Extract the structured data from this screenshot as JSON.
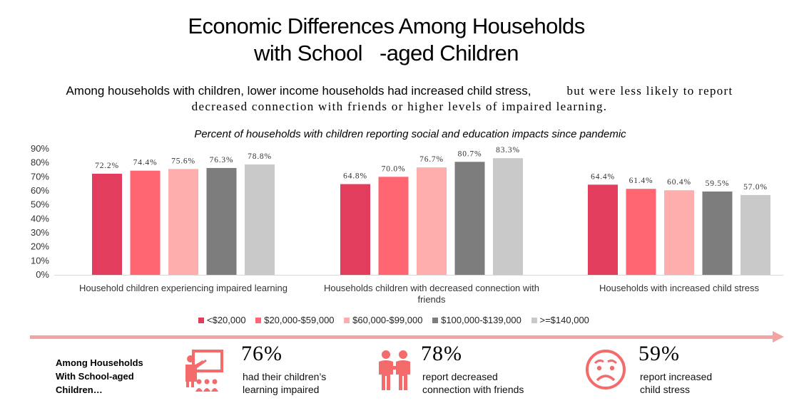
{
  "title_line1": "Economic Differences Among Households",
  "title_line2": "with School   -aged Children",
  "subtitle_part1": "Among households with children, lower income households had increased child stress,",
  "subtitle_part2": "but were less likely to report",
  "subtitle_line2": "decreased connection with friends or higher levels of impaired learning.",
  "chart_data": {
    "type": "bar",
    "title": "Percent of households with children reporting social and education impacts since pandemic",
    "categories": [
      [
        "Household children experiencing impaired learning"
      ],
      [
        "Households children with decreased connection with",
        "friends"
      ],
      [
        "Households with increased child stress"
      ]
    ],
    "series": [
      {
        "name": "<$20,000",
        "color": "#e33d5e",
        "values": [
          72.2,
          64.8,
          64.4
        ]
      },
      {
        "name": "$20,000-$59,000",
        "color": "#ff6672",
        "values": [
          74.4,
          70.0,
          61.4
        ]
      },
      {
        "name": "$60,000-$99,000",
        "color": "#ffaeae",
        "values": [
          75.6,
          76.7,
          60.4
        ]
      },
      {
        "name": "$100,000-$139,000",
        "color": "#7d7d7d",
        "values": [
          76.3,
          80.7,
          59.5
        ]
      },
      {
        "name": ">=$140,000",
        "color": "#c9c9c9",
        "values": [
          78.8,
          83.3,
          57.0
        ]
      }
    ],
    "yticks": [
      "0%",
      "10%",
      "20%",
      "30%",
      "40%",
      "50%",
      "60%",
      "70%",
      "80%",
      "90%"
    ],
    "ylim": [
      0,
      90
    ],
    "value_suffix": "%",
    "legend_position": "bottom"
  },
  "summary": {
    "heading": [
      "Among Households",
      "With School-aged",
      "Children…"
    ],
    "stats": [
      {
        "icon": "teacher-icon",
        "pct": "76%",
        "line1": "had their children’s",
        "line2": "learning impaired"
      },
      {
        "icon": "friends-icon",
        "pct": "78%",
        "line1": "report decreased",
        "line2": "connection with friends"
      },
      {
        "icon": "stressed-face-icon",
        "pct": "59%",
        "line1": "report increased",
        "line2": "child stress"
      }
    ],
    "accent": "#f4a3a3",
    "icon_color": "#f36b6b"
  }
}
